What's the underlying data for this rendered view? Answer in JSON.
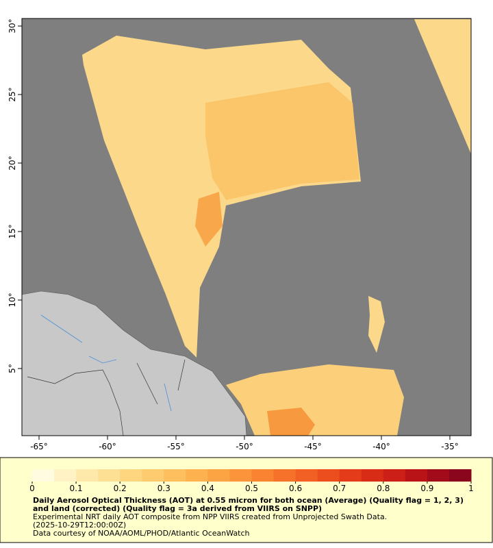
{
  "chart_data": {
    "type": "map",
    "xlim": [
      -66.25,
      -33.45
    ],
    "ylim": [
      0.1,
      30.55
    ],
    "xticks": [
      {
        "value": -65,
        "label": "-65°"
      },
      {
        "value": -60,
        "label": "-60°"
      },
      {
        "value": -55,
        "label": "-55°"
      },
      {
        "value": -50,
        "label": "-50°"
      },
      {
        "value": -45,
        "label": "-45°"
      },
      {
        "value": -40,
        "label": "-40°"
      },
      {
        "value": -35,
        "label": "-35°"
      }
    ],
    "yticks": [
      {
        "value": 5,
        "label": "5°"
      },
      {
        "value": 10,
        "label": "10°"
      },
      {
        "value": 15,
        "label": "15°"
      },
      {
        "value": 20,
        "label": "20°"
      },
      {
        "value": 25,
        "label": "25°"
      },
      {
        "value": 30,
        "label": "30°"
      }
    ],
    "colorbar": {
      "range": [
        0,
        1
      ],
      "ticks": [
        0,
        0.1,
        0.2,
        0.3,
        0.4,
        0.5,
        0.6,
        0.7,
        0.8,
        0.9,
        1
      ],
      "colors": [
        "#fffbe0",
        "#fff2c4",
        "#ffe9aa",
        "#fee095",
        "#fed680",
        "#fecb6e",
        "#febf5e",
        "#fdb24f",
        "#fca443",
        "#fb943a",
        "#f98331",
        "#f6722a",
        "#f26024",
        "#ec4e1e",
        "#e43c1a",
        "#d92c17",
        "#cc1f17",
        "#b91318",
        "#a20b1a",
        "#8a061c"
      ]
    },
    "title": "Daily Aerosol Optical Thickness (AOT) at 0.55 micron for both ocean (Average) (Quality flag = 1, 2, 3) and land (corrected) (Quality flag = 3a derived from VIIRS on SNPP)",
    "subtitle": "Experimental NRT daily AOT composite from NPP VIIRS created from Unprojected Swath Data.",
    "time": "(2025-10-29T12:00:00Z)",
    "credit": "Data courtesy of NOAA/AOML/PHOD/Atlantic OceanWatch"
  }
}
